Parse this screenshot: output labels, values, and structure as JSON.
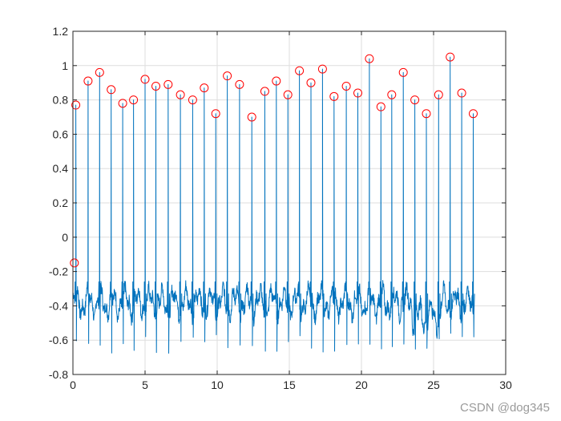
{
  "watermark": "CSDN @dog345",
  "chart_data": {
    "type": "line",
    "title": "",
    "xlabel": "",
    "ylabel": "",
    "xlim": [
      0,
      30
    ],
    "ylim": [
      -0.8,
      1.2
    ],
    "xticks": [
      0,
      5,
      10,
      15,
      20,
      25,
      30
    ],
    "xtick_labels": [
      "0",
      "5",
      "10",
      "15",
      "20",
      "25",
      "30"
    ],
    "yticks": [
      -0.8,
      -0.6,
      -0.4,
      -0.2,
      0,
      0.2,
      0.4,
      0.6,
      0.8,
      1,
      1.2
    ],
    "ytick_labels": [
      "-0.8",
      "-0.6",
      "-0.4",
      "-0.2",
      "0",
      "0.2",
      "0.4",
      "0.6",
      "0.8",
      "1",
      "1.2"
    ],
    "grid": true,
    "colors": {
      "signal": "#0072bd",
      "peaks": "#ff0000",
      "grid": "#dedede",
      "axis": "#262626"
    },
    "signal_range": [
      0,
      27.8
    ],
    "signal_baseline": -0.38,
    "peak_markers": [
      {
        "x": 0.1,
        "y": -0.15
      },
      {
        "x": 0.2,
        "y": 0.77
      },
      {
        "x": 1.05,
        "y": 0.91
      },
      {
        "x": 1.85,
        "y": 0.96
      },
      {
        "x": 2.65,
        "y": 0.86
      },
      {
        "x": 3.45,
        "y": 0.78
      },
      {
        "x": 4.2,
        "y": 0.8
      },
      {
        "x": 5.0,
        "y": 0.92
      },
      {
        "x": 5.75,
        "y": 0.88
      },
      {
        "x": 6.6,
        "y": 0.89
      },
      {
        "x": 7.45,
        "y": 0.83
      },
      {
        "x": 8.3,
        "y": 0.8
      },
      {
        "x": 9.1,
        "y": 0.87
      },
      {
        "x": 9.9,
        "y": 0.72
      },
      {
        "x": 10.7,
        "y": 0.94
      },
      {
        "x": 11.55,
        "y": 0.89
      },
      {
        "x": 12.4,
        "y": 0.7
      },
      {
        "x": 13.3,
        "y": 0.85
      },
      {
        "x": 14.1,
        "y": 0.91
      },
      {
        "x": 14.9,
        "y": 0.83
      },
      {
        "x": 15.7,
        "y": 0.97
      },
      {
        "x": 16.5,
        "y": 0.9
      },
      {
        "x": 17.3,
        "y": 0.98
      },
      {
        "x": 18.1,
        "y": 0.82
      },
      {
        "x": 18.95,
        "y": 0.88
      },
      {
        "x": 19.75,
        "y": 0.84
      },
      {
        "x": 20.55,
        "y": 1.04
      },
      {
        "x": 21.35,
        "y": 0.76
      },
      {
        "x": 22.1,
        "y": 0.83
      },
      {
        "x": 22.9,
        "y": 0.96
      },
      {
        "x": 23.7,
        "y": 0.8
      },
      {
        "x": 24.5,
        "y": 0.72
      },
      {
        "x": 25.35,
        "y": 0.83
      },
      {
        "x": 26.15,
        "y": 1.05
      },
      {
        "x": 26.95,
        "y": 0.84
      },
      {
        "x": 27.75,
        "y": 0.72
      }
    ]
  }
}
